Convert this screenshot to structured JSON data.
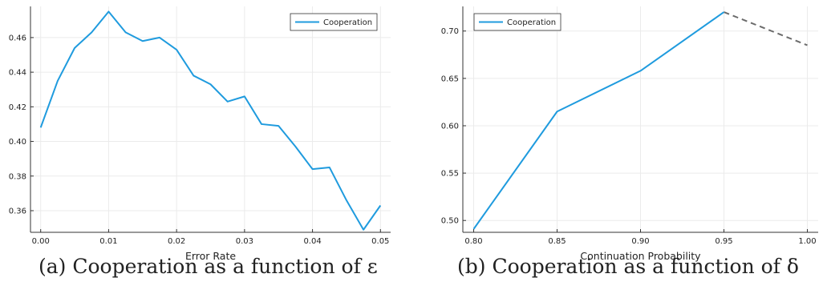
{
  "captions": {
    "a": "(a) Cooperation as a function of ε",
    "b": "(b) Cooperation as a function of δ"
  },
  "colors": {
    "series": "#1f9bde",
    "dashed": "#6b6b6b",
    "grid": "#ebebeb",
    "axis": "#333333",
    "text": "#222222"
  },
  "chart_data": [
    {
      "type": "line",
      "xlabel": "Error Rate",
      "ylabel": "",
      "xlim": [
        -0.0015,
        0.0515
      ],
      "ylim": [
        0.3475,
        0.478
      ],
      "xticks": [
        0.0,
        0.01,
        0.02,
        0.03,
        0.04,
        0.05
      ],
      "xtick_labels": [
        "0.00",
        "0.01",
        "0.02",
        "0.03",
        "0.04",
        "0.05"
      ],
      "yticks": [
        0.36,
        0.38,
        0.4,
        0.42,
        0.44,
        0.46
      ],
      "ytick_labels": [
        "0.36",
        "0.38",
        "0.40",
        "0.42",
        "0.44",
        "0.46"
      ],
      "grid": true,
      "legend": "top-right",
      "series": [
        {
          "name": "Cooperation",
          "x": [
            0.0,
            0.0025,
            0.005,
            0.0075,
            0.01,
            0.0125,
            0.015,
            0.0175,
            0.02,
            0.0225,
            0.025,
            0.0275,
            0.03,
            0.0325,
            0.035,
            0.0375,
            0.04,
            0.0425,
            0.045,
            0.0475,
            0.05
          ],
          "y": [
            0.408,
            0.435,
            0.454,
            0.463,
            0.475,
            0.463,
            0.458,
            0.46,
            0.453,
            0.438,
            0.433,
            0.423,
            0.426,
            0.41,
            0.409,
            0.397,
            0.384,
            0.385,
            0.366,
            0.349,
            0.363
          ]
        }
      ]
    },
    {
      "type": "line",
      "xlabel": "Continuation Probability",
      "ylabel": "",
      "xlim": [
        0.7935,
        1.0065
      ],
      "ylim": [
        0.4875,
        0.726
      ],
      "xticks": [
        0.8,
        0.85,
        0.9,
        0.95,
        1.0
      ],
      "xtick_labels": [
        "0.80",
        "0.85",
        "0.90",
        "0.95",
        "1.00"
      ],
      "yticks": [
        0.5,
        0.55,
        0.6,
        0.65,
        0.7
      ],
      "ytick_labels": [
        "0.50",
        "0.55",
        "0.60",
        "0.65",
        "0.70"
      ],
      "grid": true,
      "legend": "top-left",
      "series": [
        {
          "name": "Cooperation",
          "x": [
            0.8,
            0.85,
            0.9,
            0.95
          ],
          "y": [
            0.491,
            0.615,
            0.658,
            0.72
          ]
        }
      ],
      "extension": {
        "style": "dashed",
        "x": [
          0.95,
          1.0
        ],
        "y": [
          0.72,
          0.685
        ]
      }
    }
  ]
}
